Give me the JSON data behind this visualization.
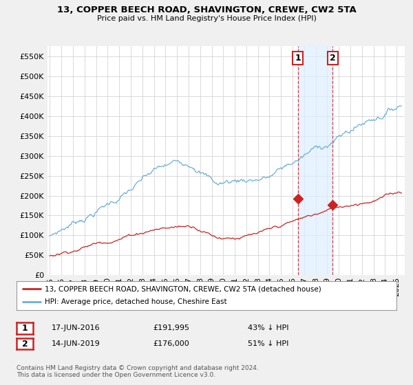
{
  "title": "13, COPPER BEECH ROAD, SHAVINGTON, CREWE, CW2 5TA",
  "subtitle": "Price paid vs. HM Land Registry's House Price Index (HPI)",
  "ytick_vals": [
    0,
    50000,
    100000,
    150000,
    200000,
    250000,
    300000,
    350000,
    400000,
    450000,
    500000,
    550000
  ],
  "ylim": [
    0,
    575000
  ],
  "hpi_color": "#6baed6",
  "price_color": "#cc2222",
  "sale1_date": 2016.46,
  "sale1_price": 191995,
  "sale2_date": 2019.45,
  "sale2_price": 176000,
  "legend_label1": "13, COPPER BEECH ROAD, SHAVINGTON, CREWE, CW2 5TA (detached house)",
  "legend_label2": "HPI: Average price, detached house, Cheshire East",
  "table_row1": [
    "1",
    "17-JUN-2016",
    "£191,995",
    "43% ↓ HPI"
  ],
  "table_row2": [
    "2",
    "14-JUN-2019",
    "£176,000",
    "51% ↓ HPI"
  ],
  "footnote": "Contains HM Land Registry data © Crown copyright and database right 2024.\nThis data is licensed under the Open Government Licence v3.0.",
  "background_color": "#f0f0f0",
  "plot_bg_color": "#ffffff",
  "grid_color": "#cccccc",
  "shade_color": "#ddeeff"
}
